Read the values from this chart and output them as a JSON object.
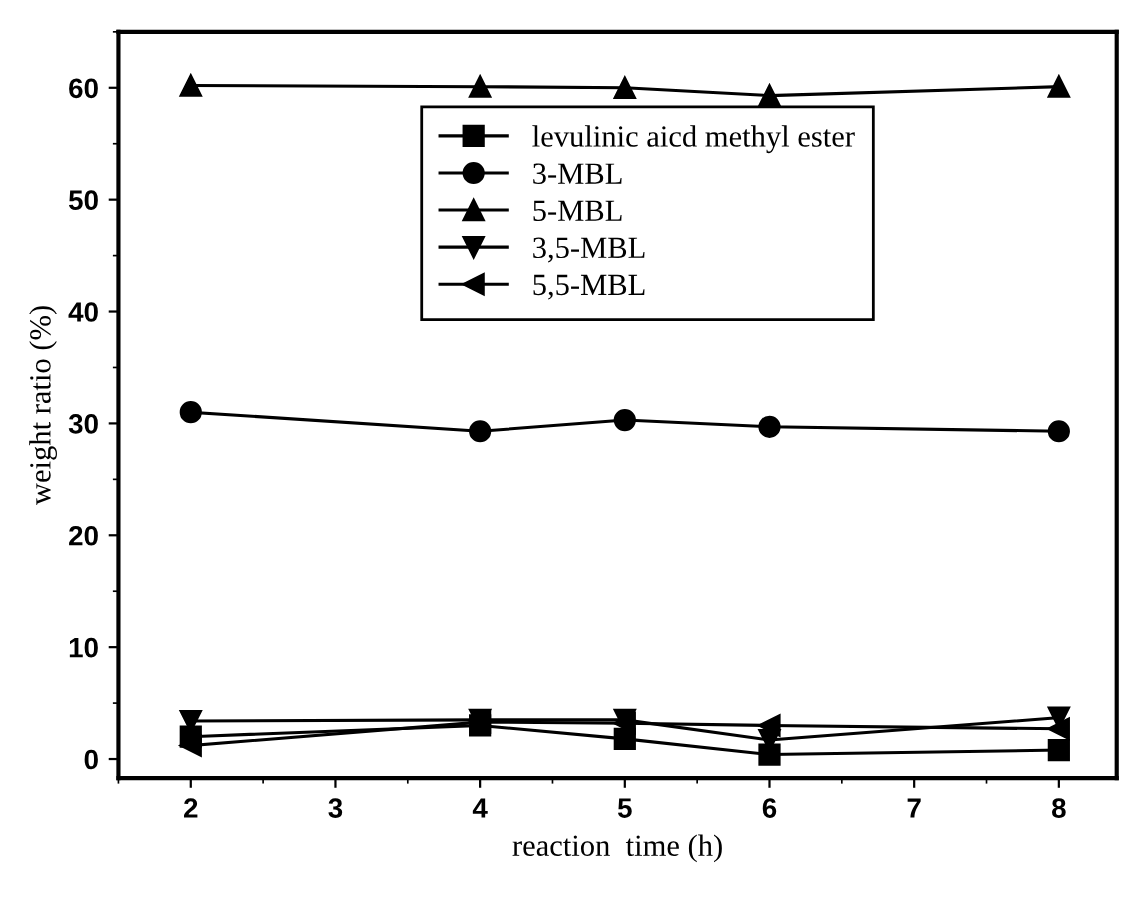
{
  "chart_data": {
    "type": "line",
    "xlabel": "reaction  time (h)",
    "ylabel": "weight ratio (%)",
    "x": [
      2,
      4,
      5,
      6,
      8
    ],
    "series": [
      {
        "name": "levulinic aicd methyl ester",
        "color": "#000000",
        "marker": "square",
        "values": [
          2.0,
          3.0,
          1.8,
          0.4,
          0.8
        ]
      },
      {
        "name": "3-MBL",
        "color": "#000000",
        "marker": "circle",
        "values": [
          31,
          29.3,
          30.3,
          29.7,
          29.3
        ]
      },
      {
        "name": "5-MBL",
        "color": "#000000",
        "marker": "triangle",
        "values": [
          60.2,
          60.1,
          60,
          59.3,
          60.1
        ]
      },
      {
        "name": "3,5-MBL",
        "color": "#000000",
        "marker": "triangle_down",
        "values": [
          3.4,
          3.5,
          3.5,
          1.7,
          3.7
        ]
      },
      {
        "name": "5,5-MBL",
        "color": "#000000",
        "marker": "triangle_left",
        "values": [
          1.2,
          3.3,
          3.2,
          3.0,
          2.7
        ]
      }
    ],
    "xlim": [
      1.5,
      8.4
    ],
    "ylim": [
      -1.7,
      65
    ],
    "xticks": [
      2,
      3,
      4,
      5,
      6,
      7,
      8
    ],
    "yticks": [
      0,
      10,
      20,
      30,
      40,
      50,
      60
    ],
    "grid": false,
    "legend": "top",
    "line_style": "solid"
  }
}
